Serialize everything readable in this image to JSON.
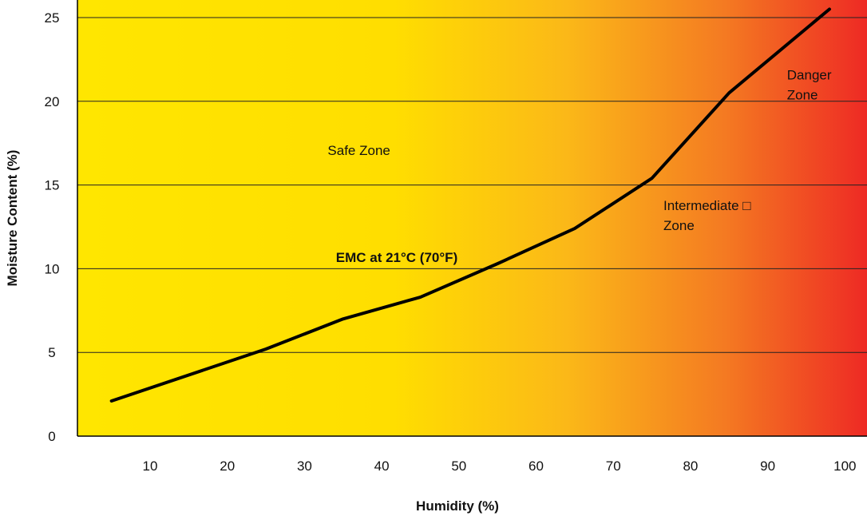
{
  "chart_data": {
    "type": "line",
    "title": "",
    "xlabel": "Humidity (%)",
    "ylabel": "Moisture Content (%)",
    "xlim": [
      0,
      100
    ],
    "ylim": [
      0,
      26
    ],
    "x_ticks": [
      10,
      20,
      30,
      40,
      50,
      60,
      70,
      80,
      90,
      100
    ],
    "y_ticks": [
      0,
      5,
      10,
      15,
      20,
      25
    ],
    "grid": "horizontal",
    "background_gradient": {
      "from": "#ffe600",
      "mid": "#fbb818",
      "to": "#ee2a24"
    },
    "line_color": "#000000",
    "series": [
      {
        "name": "EMC at 21°C (70°F)",
        "x": [
          5,
          25,
          35,
          45,
          55,
          65,
          75,
          85,
          98
        ],
        "y": [
          2.1,
          5.2,
          7.0,
          8.3,
          10.3,
          12.4,
          15.4,
          20.5,
          25.5
        ]
      }
    ],
    "annotations": [
      {
        "text": "Safe Zone",
        "x": 33,
        "y": 16.8
      },
      {
        "text": "Intermediate □\nZone",
        "x": 76.5,
        "y": 13.5
      },
      {
        "text": "Danger\nZone",
        "x": 92.5,
        "y": 21.3
      }
    ]
  }
}
